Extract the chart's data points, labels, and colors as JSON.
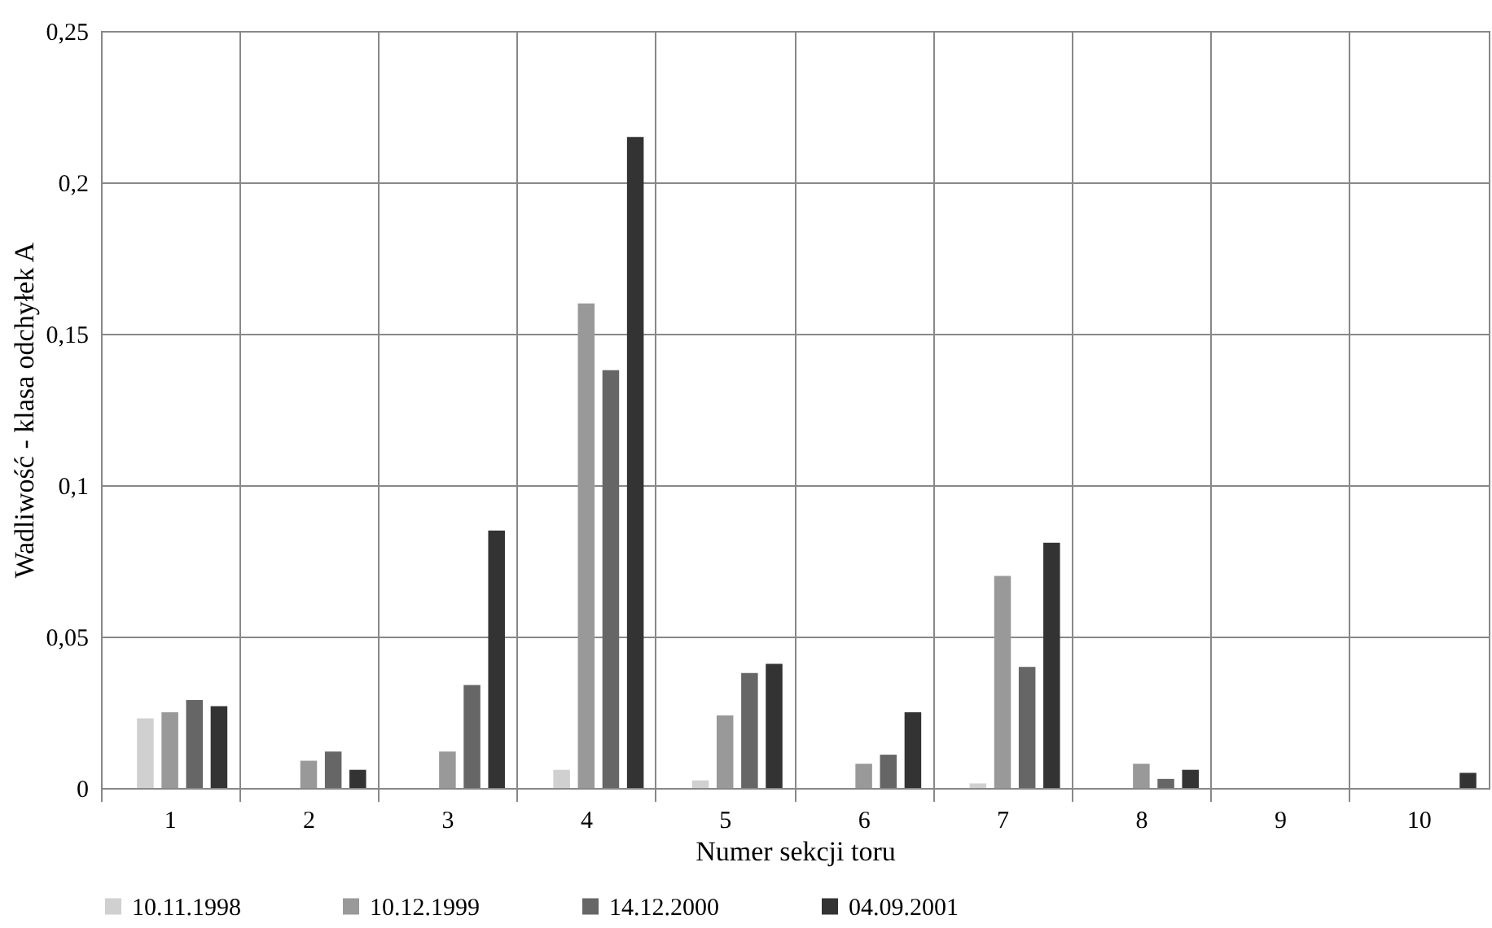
{
  "chart_data": {
    "type": "bar",
    "xlabel": "Numer sekcji toru",
    "ylabel": "Wadliwość - klasa odchyłek A",
    "categories": [
      "1",
      "2",
      "3",
      "4",
      "5",
      "6",
      "7",
      "8",
      "9",
      "10"
    ],
    "series": [
      {
        "name": "10.11.1998",
        "color": "#d0d0d0",
        "values": [
          0.023,
          0,
          0,
          0.006,
          0.0025,
          0,
          0.0015,
          0,
          0,
          0
        ]
      },
      {
        "name": "10.12.1999",
        "color": "#999999",
        "values": [
          0.025,
          0.009,
          0.012,
          0.16,
          0.024,
          0.008,
          0.07,
          0.008,
          0,
          0
        ]
      },
      {
        "name": "14.12.2000",
        "color": "#666666",
        "values": [
          0.029,
          0.012,
          0.034,
          0.138,
          0.038,
          0.011,
          0.04,
          0.003,
          0,
          0
        ]
      },
      {
        "name": "04.09.2001",
        "color": "#333333",
        "values": [
          0.027,
          0.006,
          0.085,
          0.215,
          0.041,
          0.025,
          0.081,
          0.006,
          0,
          0.005
        ]
      }
    ],
    "ylim": [
      0,
      0.25
    ],
    "yticks": [
      {
        "value": 0,
        "label": "0"
      },
      {
        "value": 0.05,
        "label": "0,05"
      },
      {
        "value": 0.1,
        "label": "0,1"
      },
      {
        "value": 0.15,
        "label": "0,15"
      },
      {
        "value": 0.2,
        "label": "0,2"
      },
      {
        "value": 0.25,
        "label": "0,25"
      }
    ],
    "grid": true,
    "legend": "bottom"
  }
}
